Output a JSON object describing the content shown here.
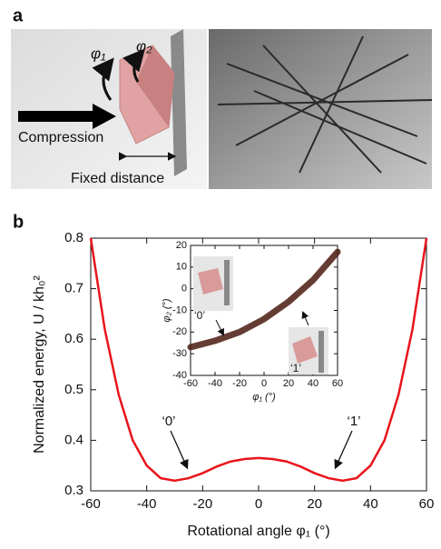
{
  "figure_a": {
    "label": "a",
    "labels": [
      "φ₁",
      "φ₂",
      "Compression",
      "Fixed distance"
    ]
  },
  "chart_data": [
    {
      "type": "line",
      "panel_label": "b",
      "x_label": "Rotational angle φ₁ (°)",
      "y_label": "Normalized energy, U / kh₀²",
      "x": [
        -60,
        -55,
        -50,
        -45,
        -40,
        -35,
        -30,
        -25,
        -20,
        -15,
        -10,
        -5,
        0,
        5,
        10,
        15,
        20,
        25,
        30,
        35,
        40,
        45,
        50,
        55,
        60
      ],
      "values": [
        0.8,
        0.62,
        0.49,
        0.4,
        0.35,
        0.325,
        0.32,
        0.325,
        0.335,
        0.348,
        0.358,
        0.363,
        0.365,
        0.363,
        0.358,
        0.348,
        0.335,
        0.325,
        0.32,
        0.325,
        0.35,
        0.4,
        0.49,
        0.62,
        0.8
      ],
      "color": "#e8141c",
      "xlim": [
        -60,
        60
      ],
      "ylim": [
        0.3,
        0.8
      ],
      "xticks": [
        -60,
        -40,
        -20,
        0,
        20,
        40,
        60
      ],
      "yticks": [
        0.3,
        0.4,
        0.5,
        0.6,
        0.7,
        0.8
      ],
      "annotations": [
        "‘0’",
        "‘1’"
      ]
    },
    {
      "type": "band",
      "x_label": "φ₁ (°)",
      "y_label": "φ₂ (°)",
      "x": [
        -60,
        -40,
        -20,
        0,
        20,
        40,
        60
      ],
      "y": [
        -27,
        -24,
        -20,
        -14,
        -6,
        4,
        17
      ],
      "color": "#4a1a10",
      "xlim": [
        -60,
        60
      ],
      "ylim": [
        -40,
        20
      ],
      "xticks": [
        -60,
        -40,
        -20,
        0,
        20,
        40,
        60
      ],
      "yticks": [
        -40,
        -30,
        -20,
        -10,
        0,
        10,
        20
      ],
      "annotations": [
        "‘0’",
        "‘1’"
      ]
    }
  ]
}
